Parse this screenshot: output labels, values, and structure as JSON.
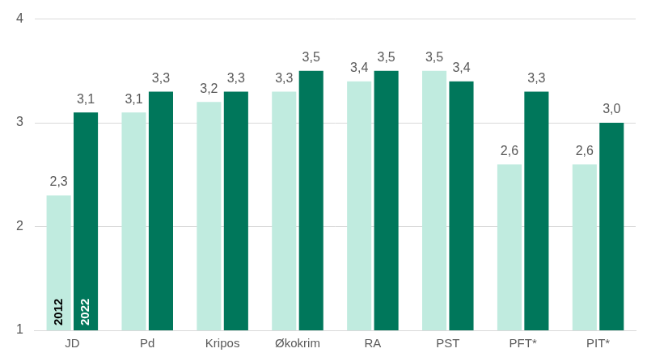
{
  "chart_data": {
    "type": "bar",
    "categories": [
      "JD",
      "Pd",
      "Kripos",
      "Økokrim",
      "RA",
      "PST",
      "PFT*",
      "PIT*"
    ],
    "series": [
      {
        "name": "2012",
        "color": "#c0ebdf",
        "values": [
          2.3,
          3.1,
          3.2,
          3.3,
          3.4,
          3.5,
          2.6,
          2.6
        ],
        "value_labels": [
          "2,3",
          "3,1",
          "3,2",
          "3,3",
          "3,4",
          "3,5",
          "2,6",
          "2,6"
        ]
      },
      {
        "name": "2022",
        "color": "#00775b",
        "values": [
          3.1,
          3.3,
          3.3,
          3.5,
          3.5,
          3.4,
          3.3,
          3.0
        ],
        "value_labels": [
          "3,1",
          "3,3",
          "3,3",
          "3,5",
          "3,5",
          "3,4",
          "3,3",
          "3,0"
        ]
      }
    ],
    "ylim": [
      1,
      4
    ],
    "yticks": [
      1,
      2,
      3,
      4
    ],
    "grid": true,
    "data_labels": true
  }
}
